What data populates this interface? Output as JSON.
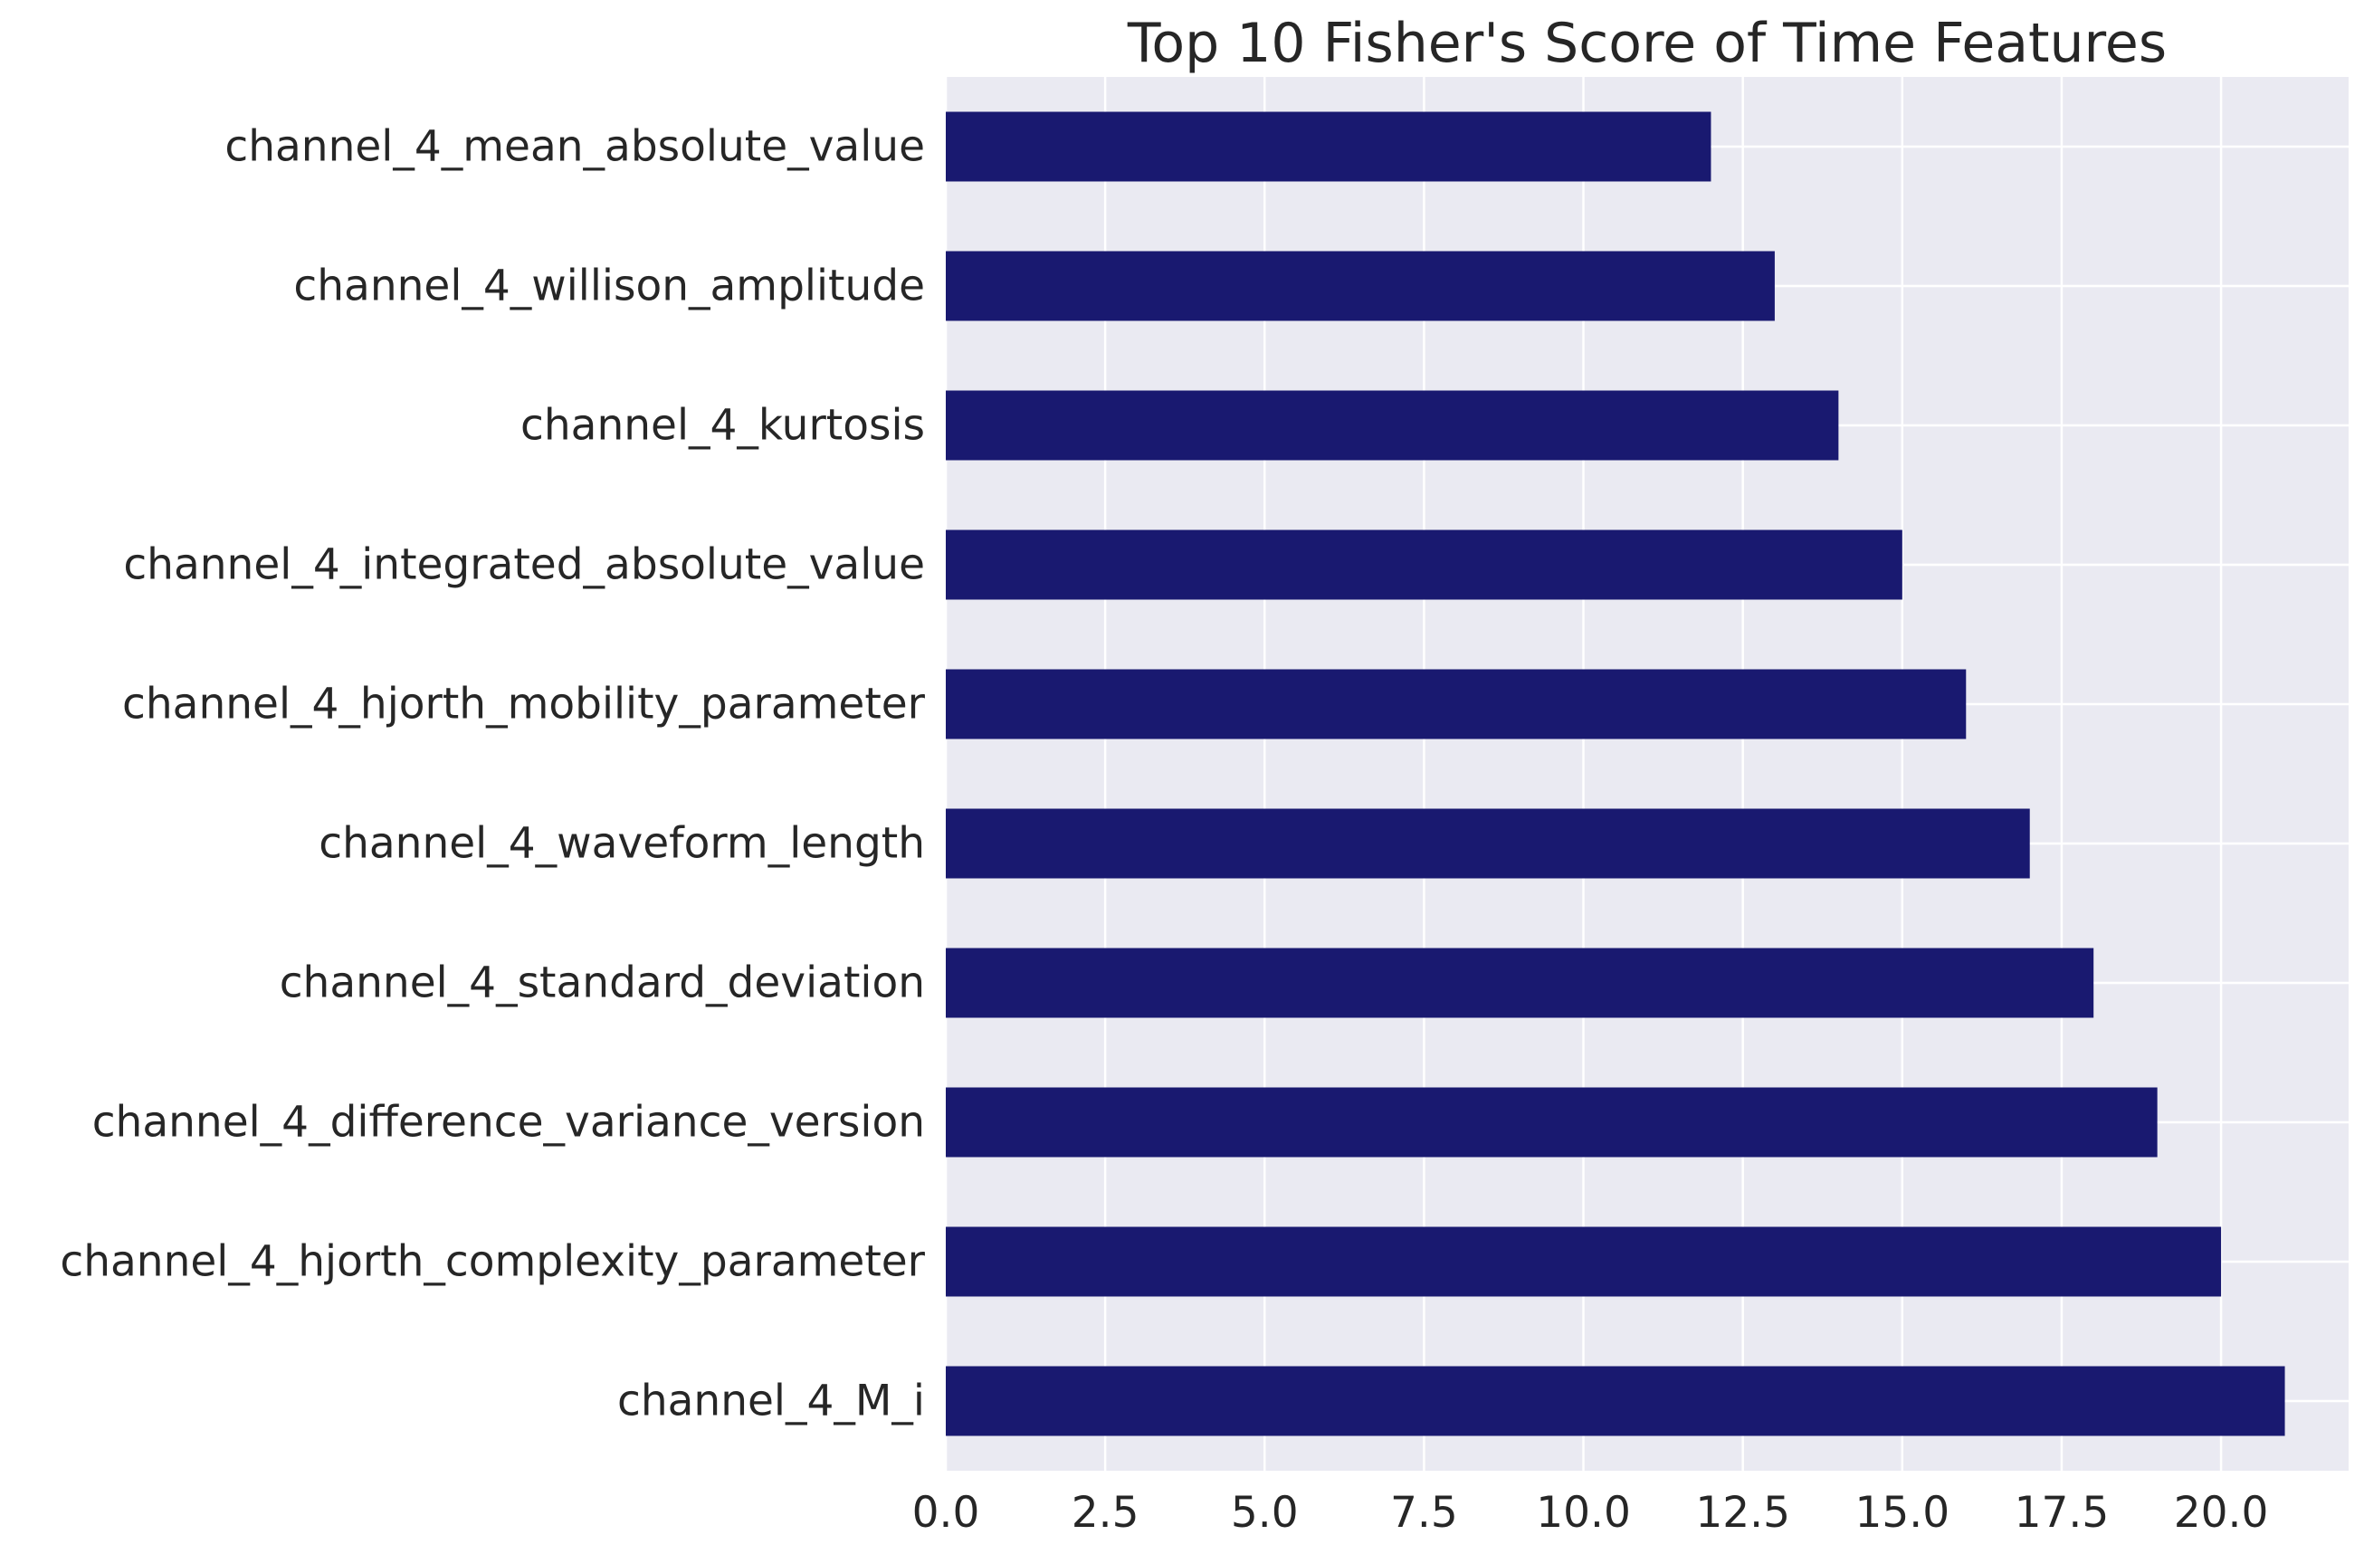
{
  "chart_data": {
    "type": "bar",
    "orientation": "horizontal",
    "title": "Top 10 Fisher's Score of Time Features",
    "xlabel": "",
    "ylabel": "",
    "categories": [
      "channel_4_mean_absolute_value",
      "channel_4_willison_amplitude",
      "channel_4_kurtosis",
      "channel_4_integrated_absolute_value",
      "channel_4_hjorth_mobility_parameter",
      "channel_4_waveform_length",
      "channel_4_standard_deviation",
      "channel_4_difference_variance_version",
      "channel_4_hjorth_complexity_parameter",
      "channel_4_M_i"
    ],
    "values": [
      12,
      13,
      14,
      15,
      16,
      17,
      18,
      19,
      20,
      21
    ],
    "xlim": [
      0,
      22
    ],
    "xticks": [
      "0.0",
      "2.5",
      "5.0",
      "7.5",
      "10.0",
      "12.5",
      "15.0",
      "17.5",
      "20.0"
    ],
    "grid": true,
    "bar_color": "#191970",
    "background_color": "#eaeaf2",
    "grid_color": "#ffffff"
  }
}
